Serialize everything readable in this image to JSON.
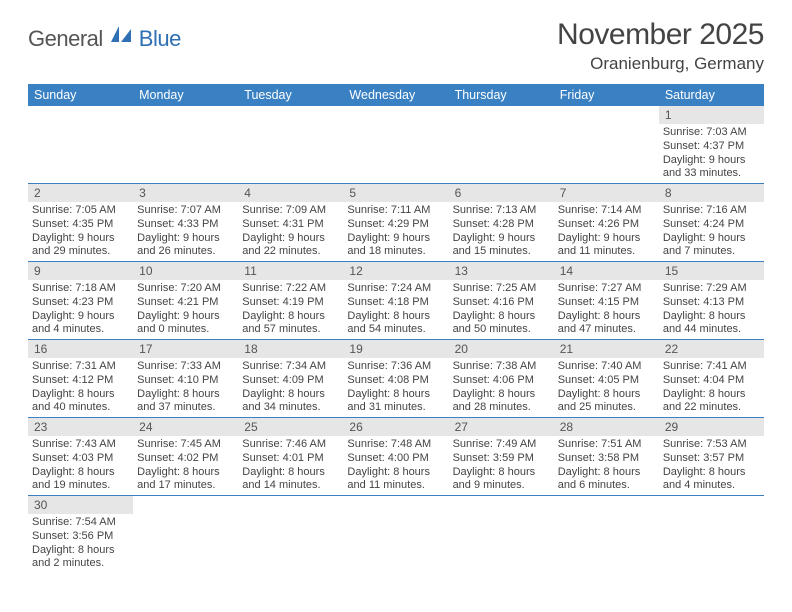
{
  "logo": {
    "part1": "General",
    "part2": "Blue"
  },
  "title": "November 2025",
  "location": "Oranienburg, Germany",
  "colors": {
    "header_bg": "#3a81c4",
    "header_fg": "#ffffff",
    "daynum_bg": "#e6e6e6",
    "rule": "#3a81c4",
    "logo_gray": "#555555",
    "logo_blue": "#2f6fb3"
  },
  "weekdays": [
    "Sunday",
    "Monday",
    "Tuesday",
    "Wednesday",
    "Thursday",
    "Friday",
    "Saturday"
  ],
  "weeks": [
    [
      null,
      null,
      null,
      null,
      null,
      null,
      {
        "n": "1",
        "sr": "Sunrise: 7:03 AM",
        "ss": "Sunset: 4:37 PM",
        "dl": "Daylight: 9 hours and 33 minutes."
      }
    ],
    [
      {
        "n": "2",
        "sr": "Sunrise: 7:05 AM",
        "ss": "Sunset: 4:35 PM",
        "dl": "Daylight: 9 hours and 29 minutes."
      },
      {
        "n": "3",
        "sr": "Sunrise: 7:07 AM",
        "ss": "Sunset: 4:33 PM",
        "dl": "Daylight: 9 hours and 26 minutes."
      },
      {
        "n": "4",
        "sr": "Sunrise: 7:09 AM",
        "ss": "Sunset: 4:31 PM",
        "dl": "Daylight: 9 hours and 22 minutes."
      },
      {
        "n": "5",
        "sr": "Sunrise: 7:11 AM",
        "ss": "Sunset: 4:29 PM",
        "dl": "Daylight: 9 hours and 18 minutes."
      },
      {
        "n": "6",
        "sr": "Sunrise: 7:13 AM",
        "ss": "Sunset: 4:28 PM",
        "dl": "Daylight: 9 hours and 15 minutes."
      },
      {
        "n": "7",
        "sr": "Sunrise: 7:14 AM",
        "ss": "Sunset: 4:26 PM",
        "dl": "Daylight: 9 hours and 11 minutes."
      },
      {
        "n": "8",
        "sr": "Sunrise: 7:16 AM",
        "ss": "Sunset: 4:24 PM",
        "dl": "Daylight: 9 hours and 7 minutes."
      }
    ],
    [
      {
        "n": "9",
        "sr": "Sunrise: 7:18 AM",
        "ss": "Sunset: 4:23 PM",
        "dl": "Daylight: 9 hours and 4 minutes."
      },
      {
        "n": "10",
        "sr": "Sunrise: 7:20 AM",
        "ss": "Sunset: 4:21 PM",
        "dl": "Daylight: 9 hours and 0 minutes."
      },
      {
        "n": "11",
        "sr": "Sunrise: 7:22 AM",
        "ss": "Sunset: 4:19 PM",
        "dl": "Daylight: 8 hours and 57 minutes."
      },
      {
        "n": "12",
        "sr": "Sunrise: 7:24 AM",
        "ss": "Sunset: 4:18 PM",
        "dl": "Daylight: 8 hours and 54 minutes."
      },
      {
        "n": "13",
        "sr": "Sunrise: 7:25 AM",
        "ss": "Sunset: 4:16 PM",
        "dl": "Daylight: 8 hours and 50 minutes."
      },
      {
        "n": "14",
        "sr": "Sunrise: 7:27 AM",
        "ss": "Sunset: 4:15 PM",
        "dl": "Daylight: 8 hours and 47 minutes."
      },
      {
        "n": "15",
        "sr": "Sunrise: 7:29 AM",
        "ss": "Sunset: 4:13 PM",
        "dl": "Daylight: 8 hours and 44 minutes."
      }
    ],
    [
      {
        "n": "16",
        "sr": "Sunrise: 7:31 AM",
        "ss": "Sunset: 4:12 PM",
        "dl": "Daylight: 8 hours and 40 minutes."
      },
      {
        "n": "17",
        "sr": "Sunrise: 7:33 AM",
        "ss": "Sunset: 4:10 PM",
        "dl": "Daylight: 8 hours and 37 minutes."
      },
      {
        "n": "18",
        "sr": "Sunrise: 7:34 AM",
        "ss": "Sunset: 4:09 PM",
        "dl": "Daylight: 8 hours and 34 minutes."
      },
      {
        "n": "19",
        "sr": "Sunrise: 7:36 AM",
        "ss": "Sunset: 4:08 PM",
        "dl": "Daylight: 8 hours and 31 minutes."
      },
      {
        "n": "20",
        "sr": "Sunrise: 7:38 AM",
        "ss": "Sunset: 4:06 PM",
        "dl": "Daylight: 8 hours and 28 minutes."
      },
      {
        "n": "21",
        "sr": "Sunrise: 7:40 AM",
        "ss": "Sunset: 4:05 PM",
        "dl": "Daylight: 8 hours and 25 minutes."
      },
      {
        "n": "22",
        "sr": "Sunrise: 7:41 AM",
        "ss": "Sunset: 4:04 PM",
        "dl": "Daylight: 8 hours and 22 minutes."
      }
    ],
    [
      {
        "n": "23",
        "sr": "Sunrise: 7:43 AM",
        "ss": "Sunset: 4:03 PM",
        "dl": "Daylight: 8 hours and 19 minutes."
      },
      {
        "n": "24",
        "sr": "Sunrise: 7:45 AM",
        "ss": "Sunset: 4:02 PM",
        "dl": "Daylight: 8 hours and 17 minutes."
      },
      {
        "n": "25",
        "sr": "Sunrise: 7:46 AM",
        "ss": "Sunset: 4:01 PM",
        "dl": "Daylight: 8 hours and 14 minutes."
      },
      {
        "n": "26",
        "sr": "Sunrise: 7:48 AM",
        "ss": "Sunset: 4:00 PM",
        "dl": "Daylight: 8 hours and 11 minutes."
      },
      {
        "n": "27",
        "sr": "Sunrise: 7:49 AM",
        "ss": "Sunset: 3:59 PM",
        "dl": "Daylight: 8 hours and 9 minutes."
      },
      {
        "n": "28",
        "sr": "Sunrise: 7:51 AM",
        "ss": "Sunset: 3:58 PM",
        "dl": "Daylight: 8 hours and 6 minutes."
      },
      {
        "n": "29",
        "sr": "Sunrise: 7:53 AM",
        "ss": "Sunset: 3:57 PM",
        "dl": "Daylight: 8 hours and 4 minutes."
      }
    ],
    [
      {
        "n": "30",
        "sr": "Sunrise: 7:54 AM",
        "ss": "Sunset: 3:56 PM",
        "dl": "Daylight: 8 hours and 2 minutes."
      },
      null,
      null,
      null,
      null,
      null,
      null
    ]
  ]
}
